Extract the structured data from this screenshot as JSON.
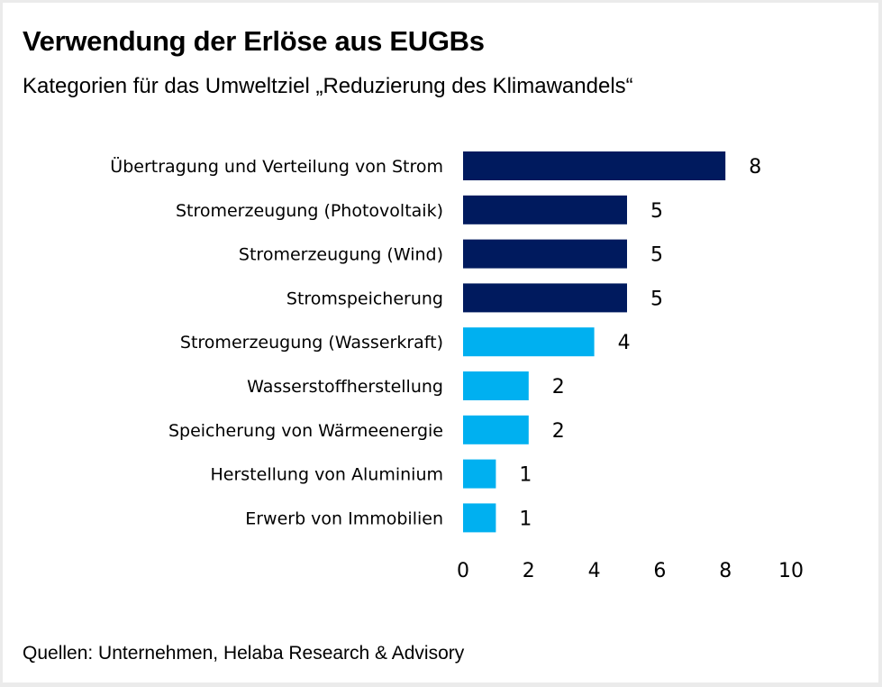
{
  "header": {
    "title": "Verwendung der Erlöse aus EUGBs",
    "subtitle": "Kategorien für das Umweltziel „Reduzierung des Klimawandels“"
  },
  "footer": {
    "source": "Quellen: Unternehmen, Helaba Research & Advisory"
  },
  "colors": {
    "dark": "#001a5e",
    "light": "#00b0f0"
  },
  "chart_data": {
    "type": "bar",
    "orientation": "horizontal",
    "title": "Verwendung der Erlöse aus EUGBs",
    "subtitle": "Kategorien für das Umweltziel „Reduzierung des Klimawandels“",
    "xlabel": "",
    "ylabel": "",
    "categories": [
      "Übertragung und Verteilung von Strom",
      "Stromerzeugung (Photovoltaik)",
      "Stromerzeugung (Wind)",
      "Stromspeicherung",
      "Stromerzeugung (Wasserkraft)",
      "Wasserstoffherstellung",
      "Speicherung von Wärmeenergie",
      "Herstellung von Aluminium",
      "Erwerb von Immobilien"
    ],
    "values": [
      8,
      5,
      5,
      5,
      4,
      2,
      2,
      1,
      1
    ],
    "bar_colors": [
      "dark",
      "dark",
      "dark",
      "dark",
      "light",
      "light",
      "light",
      "light",
      "light"
    ],
    "xlim": [
      0,
      10
    ],
    "xticks": [
      0,
      2,
      4,
      6,
      8,
      10
    ],
    "grid": false,
    "legend": "none",
    "data_labels": true
  }
}
